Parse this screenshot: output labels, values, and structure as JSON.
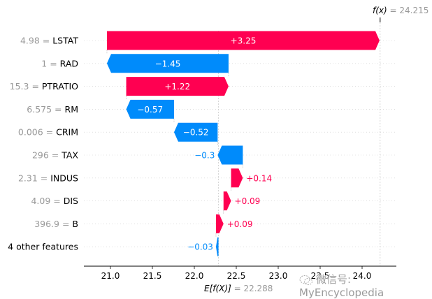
{
  "chart_data": {
    "type": "waterfall",
    "title": "",
    "base_value": 22.288,
    "base_label_prefix": "E[f(X)]",
    "base_label_value": "= 22.288",
    "output_value": 24.215,
    "output_label_prefix": "f(x)",
    "output_label_value": "= 24.215",
    "xlim": [
      20.7,
      24.42
    ],
    "xticks": [
      21.0,
      21.5,
      22.0,
      22.5,
      23.0,
      23.5,
      24.0
    ],
    "xtick_labels": [
      "21.0",
      "21.5",
      "22.0",
      "22.5",
      "23.0",
      "23.5",
      "24.0"
    ],
    "features": [
      {
        "value_text": "4.98",
        "name": "LSTAT",
        "shap": 3.25,
        "label": "+3.25"
      },
      {
        "value_text": "1",
        "name": "RAD",
        "shap": -1.45,
        "label": "−1.45"
      },
      {
        "value_text": "15.3",
        "name": "PTRATIO",
        "shap": 1.22,
        "label": "+1.22"
      },
      {
        "value_text": "6.575",
        "name": "RM",
        "shap": -0.57,
        "label": "−0.57"
      },
      {
        "value_text": "0.006",
        "name": "CRIM",
        "shap": -0.52,
        "label": "−0.52"
      },
      {
        "value_text": "296",
        "name": "TAX",
        "shap": -0.3,
        "label": "−0.3"
      },
      {
        "value_text": "2.31",
        "name": "INDUS",
        "shap": 0.14,
        "label": "+0.14"
      },
      {
        "value_text": "4.09",
        "name": "DIS",
        "shap": 0.09,
        "label": "+0.09"
      },
      {
        "value_text": "396.9",
        "name": "B",
        "shap": 0.09,
        "label": "+0.09"
      },
      {
        "value_text": "",
        "name": "4 other features",
        "shap": -0.03,
        "label": "−0.03"
      }
    ],
    "colors": {
      "positive": "#ff0051",
      "negative": "#008bfb",
      "value_text": "#999999",
      "grid": "#cccccc"
    }
  },
  "watermark": {
    "text": "微信号: MyEncyclopedia"
  }
}
